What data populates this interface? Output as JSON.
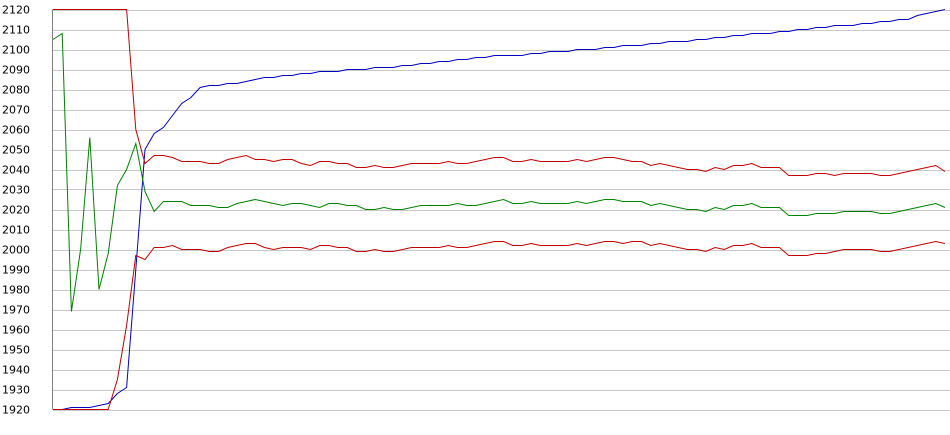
{
  "chart_data": {
    "type": "line",
    "title": "",
    "xlabel": "",
    "ylabel": "",
    "ylim": [
      1920,
      2120
    ],
    "yticks": [
      1920,
      1930,
      1940,
      1950,
      1960,
      1970,
      1980,
      1990,
      2000,
      2010,
      2020,
      2030,
      2040,
      2050,
      2060,
      2070,
      2080,
      2090,
      2100,
      2110,
      2120
    ],
    "grid": "horizontal",
    "legend": "none",
    "x": [
      0,
      1,
      2,
      3,
      4,
      5,
      6,
      7,
      8,
      9,
      10,
      11,
      12,
      13,
      14,
      15,
      16,
      17,
      18,
      19,
      20,
      21,
      22,
      23,
      24,
      25,
      26,
      27,
      28,
      29,
      30,
      31,
      32,
      33,
      34,
      35,
      36,
      37,
      38,
      39,
      40,
      41,
      42,
      43,
      44,
      45,
      46,
      47,
      48,
      49,
      50,
      51,
      52,
      53,
      54,
      55,
      56,
      57,
      58,
      59,
      60,
      61,
      62,
      63,
      64,
      65,
      66,
      67,
      68,
      69,
      70,
      71,
      72,
      73,
      74,
      75,
      76,
      77,
      78,
      79,
      80,
      81,
      82,
      83,
      84,
      85,
      86,
      87,
      88,
      89,
      90,
      91,
      92,
      93,
      94,
      95,
      96,
      97
    ],
    "series": [
      {
        "color": "#0000c0",
        "values": [
          1920,
          1920,
          1921,
          1921,
          1921,
          1922,
          1923,
          1928,
          1931,
          1990,
          2050,
          2058,
          2061,
          2067,
          2073,
          2076,
          2081,
          2082,
          2082,
          2083,
          2083,
          2084,
          2085,
          2086,
          2086,
          2087,
          2087,
          2088,
          2088,
          2089,
          2089,
          2089,
          2090,
          2090,
          2090,
          2091,
          2091,
          2091,
          2092,
          2092,
          2093,
          2093,
          2094,
          2094,
          2095,
          2095,
          2096,
          2096,
          2097,
          2097,
          2097,
          2097,
          2098,
          2098,
          2099,
          2099,
          2099,
          2100,
          2100,
          2100,
          2101,
          2101,
          2102,
          2102,
          2102,
          2103,
          2103,
          2104,
          2104,
          2104,
          2105,
          2105,
          2106,
          2106,
          2107,
          2107,
          2108,
          2108,
          2108,
          2109,
          2109,
          2110,
          2110,
          2111,
          2111,
          2112,
          2112,
          2112,
          2113,
          2113,
          2114,
          2114,
          2115,
          2115,
          2117,
          2118,
          2119,
          2120
        ]
      },
      {
        "color": "#c00000",
        "values": [
          2120,
          2120,
          2120,
          2120,
          2120,
          2120,
          2120,
          2120,
          2120,
          2060,
          2043,
          2047,
          2047,
          2046,
          2044,
          2044,
          2044,
          2043,
          2043,
          2045,
          2046,
          2047,
          2045,
          2045,
          2044,
          2045,
          2045,
          2043,
          2042,
          2044,
          2044,
          2043,
          2043,
          2041,
          2041,
          2042,
          2041,
          2041,
          2042,
          2043,
          2043,
          2043,
          2043,
          2044,
          2043,
          2043,
          2044,
          2045,
          2046,
          2046,
          2044,
          2044,
          2045,
          2044,
          2044,
          2044,
          2044,
          2045,
          2044,
          2045,
          2046,
          2046,
          2045,
          2044,
          2044,
          2042,
          2043,
          2042,
          2041,
          2040,
          2040,
          2039,
          2041,
          2040,
          2042,
          2042,
          2043,
          2041,
          2041,
          2041,
          2037,
          2037,
          2037,
          2038,
          2038,
          2037,
          2038,
          2038,
          2038,
          2038,
          2037,
          2037,
          2038,
          2039,
          2040,
          2041,
          2042,
          2039
        ]
      },
      {
        "color": "#008000",
        "values": [
          2105,
          2108,
          1969,
          2000,
          2056,
          1980,
          1998,
          2032,
          2040,
          2053,
          2029,
          2019,
          2024,
          2024,
          2024,
          2022,
          2022,
          2022,
          2021,
          2021,
          2023,
          2024,
          2025,
          2024,
          2023,
          2022,
          2023,
          2023,
          2022,
          2021,
          2023,
          2023,
          2022,
          2022,
          2020,
          2020,
          2021,
          2020,
          2020,
          2021,
          2022,
          2022,
          2022,
          2022,
          2023,
          2022,
          2022,
          2023,
          2024,
          2025,
          2023,
          2023,
          2024,
          2023,
          2023,
          2023,
          2023,
          2024,
          2023,
          2024,
          2025,
          2025,
          2024,
          2024,
          2024,
          2022,
          2023,
          2022,
          2021,
          2020,
          2020,
          2019,
          2021,
          2020,
          2022,
          2022,
          2023,
          2021,
          2021,
          2021,
          2017,
          2017,
          2017,
          2018,
          2018,
          2018,
          2019,
          2019,
          2019,
          2019,
          2018,
          2018,
          2019,
          2020,
          2021,
          2022,
          2023,
          2021
        ]
      },
      {
        "color": "#c00000",
        "values": [
          1920,
          1920,
          1920,
          1920,
          1920,
          1920,
          1920,
          1935,
          1962,
          1997,
          1995,
          2001,
          2001,
          2002,
          2000,
          2000,
          2000,
          1999,
          1999,
          2001,
          2002,
          2003,
          2003,
          2001,
          2000,
          2001,
          2001,
          2001,
          2000,
          2002,
          2002,
          2001,
          2001,
          1999,
          1999,
          2000,
          1999,
          1999,
          2000,
          2001,
          2001,
          2001,
          2001,
          2002,
          2001,
          2001,
          2002,
          2003,
          2004,
          2004,
          2002,
          2002,
          2003,
          2002,
          2002,
          2002,
          2002,
          2003,
          2002,
          2003,
          2004,
          2004,
          2003,
          2004,
          2004,
          2002,
          2003,
          2002,
          2001,
          2000,
          2000,
          1999,
          2001,
          2000,
          2002,
          2002,
          2003,
          2001,
          2001,
          2001,
          1997,
          1997,
          1997,
          1998,
          1998,
          1999,
          2000,
          2000,
          2000,
          2000,
          1999,
          1999,
          2000,
          2001,
          2002,
          2003,
          2004,
          2003
        ]
      }
    ]
  }
}
